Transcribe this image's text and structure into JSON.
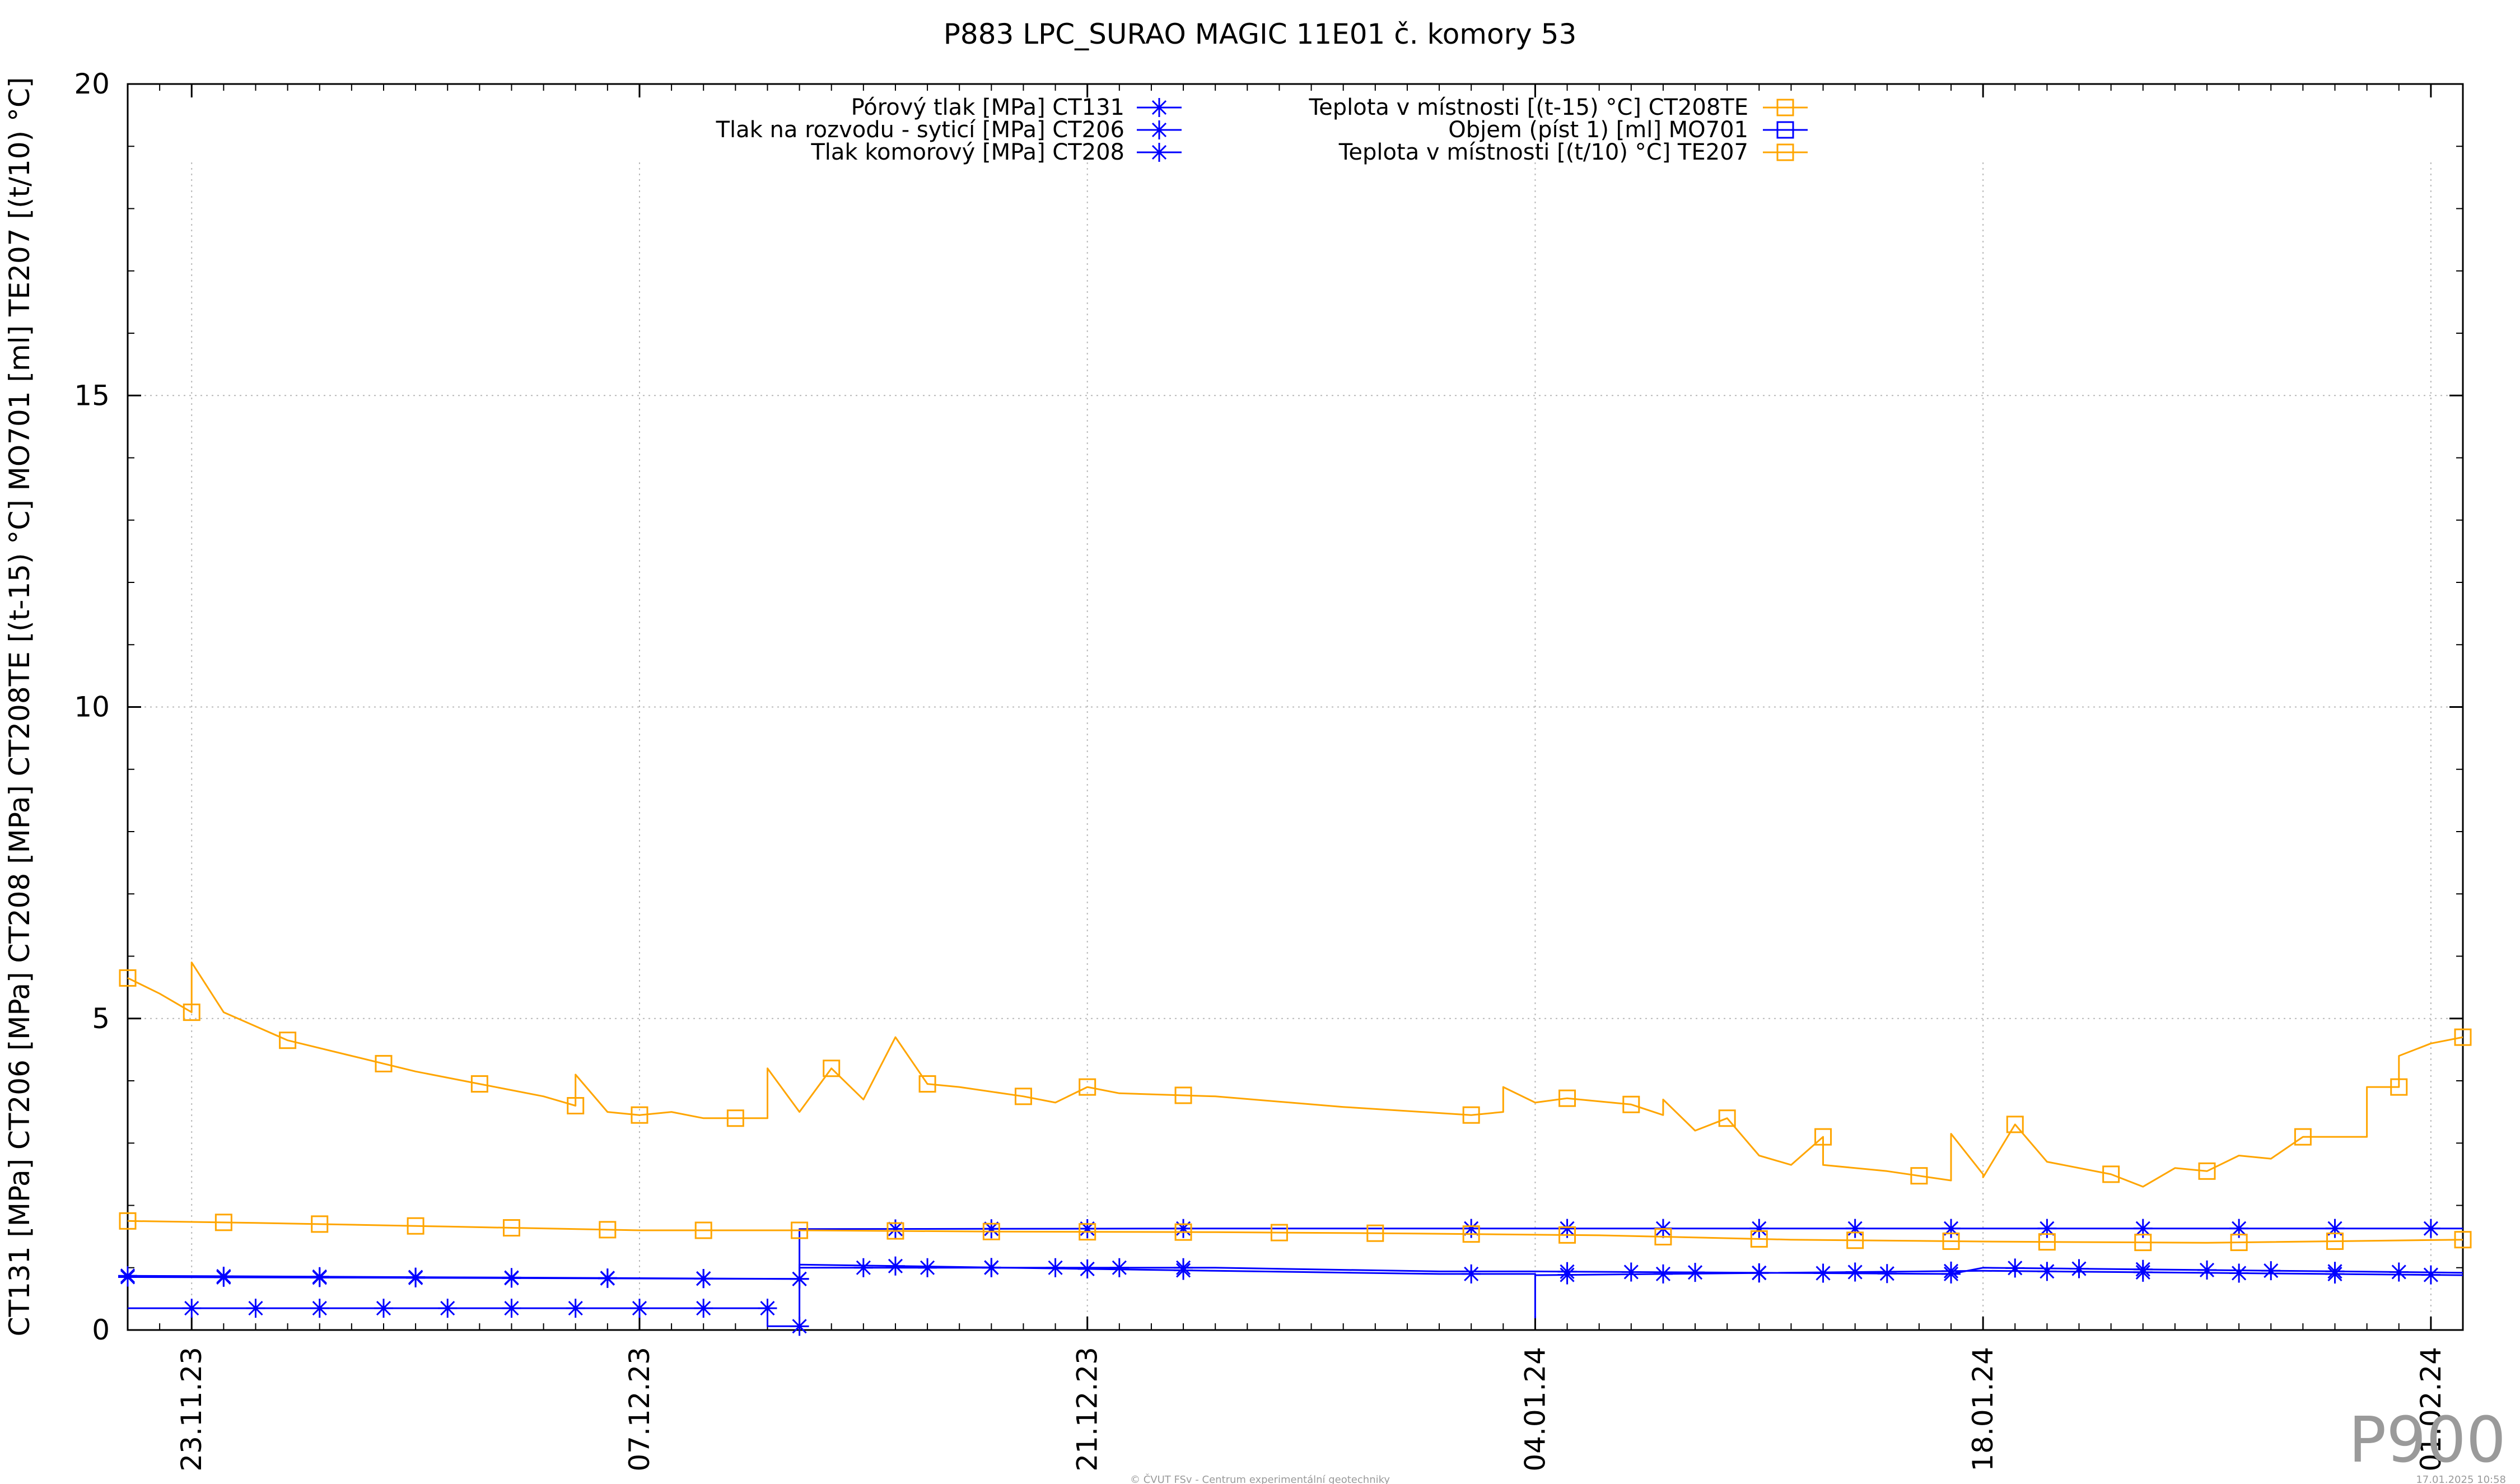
{
  "chart_data": {
    "type": "line",
    "title": "P883 LPC_SURAO MAGIC 11E01 č. komory 53",
    "ylabel": "CT131 [MPa] CT206 [MPa] CT208 [MPa] CT208TE [(t-15) °C] MO701 [ml] TE207 [(t/10) °C]",
    "xlabel": "",
    "ylim": [
      0,
      20
    ],
    "yticks": [
      0,
      5,
      10,
      15,
      20
    ],
    "y_minor_step": 1,
    "xlim": [
      "2023-11-21",
      "2024-02-02"
    ],
    "xticks": [
      "2023-11-23",
      "2023-12-07",
      "2023-12-21",
      "2024-01-04",
      "2024-01-18",
      "2024-02-01"
    ],
    "xtick_labels": [
      "23.11.23",
      "07.12.23",
      "21.12.23",
      "04.01.24",
      "18.01.24",
      "01.02.24"
    ],
    "x_minor_step_days": 1,
    "grid": true,
    "legend_position": "top",
    "series": [
      {
        "name": "Pórový tlak [MPa] CT131",
        "color": "#0000ff",
        "marker": "asterisk",
        "legend_col": 0,
        "points": [
          [
            "2023-11-21",
            0.35
          ],
          [
            "2023-12-11",
            0.35
          ],
          [
            "2023-12-11",
            0.06
          ],
          [
            "2023-12-12",
            0.06
          ],
          [
            "2023-12-12",
            1.0
          ],
          [
            "2023-12-25",
            1.0
          ],
          [
            "2024-01-01",
            0.94
          ],
          [
            "2024-01-04",
            0.94
          ],
          [
            "2024-01-17",
            0.9
          ],
          [
            "2024-01-18",
            1.0
          ],
          [
            "2024-02-02",
            0.92
          ]
        ],
        "markers": [
          "2023-11-23",
          "2023-11-25",
          "2023-11-27",
          "2023-11-29",
          "2023-12-01",
          "2023-12-03",
          "2023-12-05",
          "2023-12-07",
          "2023-12-09",
          "2023-12-11",
          "2023-12-12",
          "2023-12-14",
          "2023-12-16",
          "2023-12-18",
          "2023-12-20",
          "2023-12-22",
          "2023-12-24",
          "2024-01-05",
          "2024-01-07",
          "2024-01-09",
          "2024-01-11",
          "2024-01-13",
          "2024-01-15",
          "2024-01-17",
          "2024-01-19",
          "2024-01-21",
          "2024-01-23",
          "2024-01-25",
          "2024-01-27",
          "2024-01-29",
          "2024-01-31"
        ]
      },
      {
        "name": "Tlak na rozvodu - syticí [MPa] CT206",
        "color": "#0000ff",
        "marker": "asterisk",
        "legend_col": 0,
        "points": [
          [
            "2023-11-21",
            0.85
          ],
          [
            "2023-12-12",
            0.82
          ],
          [
            "2023-12-12",
            1.05
          ],
          [
            "2023-12-25",
            0.95
          ],
          [
            "2024-01-01",
            0.9
          ],
          [
            "2024-01-04",
            0.9
          ],
          [
            "2024-01-04",
            0.2
          ],
          [
            "2024-01-04",
            0.88
          ],
          [
            "2024-01-18",
            0.95
          ],
          [
            "2024-02-02",
            0.88
          ]
        ],
        "markers": [
          "2023-11-21",
          "2023-11-24",
          "2023-11-27",
          "2023-11-30",
          "2023-12-03",
          "2023-12-06",
          "2023-12-09",
          "2023-12-12",
          "2023-12-15",
          "2023-12-18",
          "2023-12-21",
          "2023-12-24",
          "2024-01-02",
          "2024-01-05",
          "2024-01-08",
          "2024-01-11",
          "2024-01-14",
          "2024-01-17",
          "2024-01-20",
          "2024-01-23",
          "2024-01-26",
          "2024-01-29",
          "2024-02-01"
        ]
      },
      {
        "name": "Tlak komorový [MPa] CT208",
        "color": "#0000ff",
        "marker": "asterisk",
        "legend_col": 0,
        "points": [
          [
            "2023-11-21",
            0.87
          ],
          [
            "2023-12-12",
            0.82
          ],
          [
            "2023-12-12",
            1.62
          ],
          [
            "2023-12-25",
            1.63
          ],
          [
            "2024-01-01",
            1.63
          ],
          [
            "2024-02-02",
            1.63
          ]
        ],
        "markers": [
          "2023-11-21",
          "2023-11-24",
          "2023-11-27",
          "2023-11-30",
          "2023-12-03",
          "2023-12-06",
          "2023-12-09",
          "2023-12-12",
          "2023-12-15",
          "2023-12-18",
          "2023-12-21",
          "2023-12-24",
          "2024-01-02",
          "2024-01-05",
          "2024-01-08",
          "2024-01-11",
          "2024-01-14",
          "2024-01-17",
          "2024-01-20",
          "2024-01-23",
          "2024-01-26",
          "2024-01-29",
          "2024-02-01"
        ]
      },
      {
        "name": "Teplota v místnosti [(t-15) °C] CT208TE",
        "color": "#ffa500",
        "marker": "square",
        "legend_col": 1,
        "points": [
          [
            "2023-11-21",
            5.65
          ],
          [
            "2023-11-22",
            5.4
          ],
          [
            "2023-11-23",
            5.1
          ],
          [
            "2023-11-23",
            5.9
          ],
          [
            "2023-11-24",
            5.1
          ],
          [
            "2023-11-26",
            4.65
          ],
          [
            "2023-11-28",
            4.4
          ],
          [
            "2023-11-30",
            4.15
          ],
          [
            "2023-12-02",
            3.95
          ],
          [
            "2023-12-04",
            3.75
          ],
          [
            "2023-12-05",
            3.6
          ],
          [
            "2023-12-05",
            4.1
          ],
          [
            "2023-12-06",
            3.5
          ],
          [
            "2023-12-07",
            3.45
          ],
          [
            "2023-12-08",
            3.5
          ],
          [
            "2023-12-09",
            3.4
          ],
          [
            "2023-12-11",
            3.4
          ],
          [
            "2023-12-11",
            4.2
          ],
          [
            "2023-12-12",
            3.5
          ],
          [
            "2023-12-13",
            4.2
          ],
          [
            "2023-12-14",
            3.7
          ],
          [
            "2023-12-15",
            4.7
          ],
          [
            "2023-12-16",
            3.95
          ],
          [
            "2023-12-17",
            3.9
          ],
          [
            "2023-12-19",
            3.75
          ],
          [
            "2023-12-20",
            3.65
          ],
          [
            "2023-12-21",
            3.9
          ],
          [
            "2023-12-22",
            3.8
          ],
          [
            "2023-12-25",
            3.75
          ],
          [
            "2023-12-29",
            3.58
          ],
          [
            "2024-01-02",
            3.45
          ],
          [
            "2024-01-03",
            3.5
          ],
          [
            "2024-01-03",
            3.9
          ],
          [
            "2024-01-04",
            3.65
          ],
          [
            "2024-01-05",
            3.72
          ],
          [
            "2024-01-07",
            3.62
          ],
          [
            "2024-01-08",
            3.45
          ],
          [
            "2024-01-08",
            3.7
          ],
          [
            "2024-01-09",
            3.2
          ],
          [
            "2024-01-10",
            3.4
          ],
          [
            "2024-01-11",
            2.8
          ],
          [
            "2024-01-12",
            2.65
          ],
          [
            "2024-01-13",
            3.1
          ],
          [
            "2024-01-13",
            2.65
          ],
          [
            "2024-01-15",
            2.55
          ],
          [
            "2024-01-17",
            2.4
          ],
          [
            "2024-01-17",
            3.15
          ],
          [
            "2024-01-18",
            2.5
          ],
          [
            "2024-01-18",
            2.45
          ],
          [
            "2024-01-19",
            3.3
          ],
          [
            "2024-01-20",
            2.7
          ],
          [
            "2024-01-22",
            2.5
          ],
          [
            "2024-01-23",
            2.3
          ],
          [
            "2024-01-24",
            2.6
          ],
          [
            "2024-01-25",
            2.55
          ],
          [
            "2024-01-26",
            2.8
          ],
          [
            "2024-01-27",
            2.75
          ],
          [
            "2024-01-28",
            3.1
          ],
          [
            "2024-01-30",
            3.1
          ],
          [
            "2024-01-30",
            3.9
          ],
          [
            "2024-01-31",
            3.9
          ],
          [
            "2024-01-31",
            4.4
          ],
          [
            "2024-02-01",
            4.6
          ],
          [
            "2024-02-02",
            4.7
          ]
        ],
        "markers": [
          "2023-11-21",
          "2023-11-23",
          "2023-11-26",
          "2023-11-29",
          "2023-12-02",
          "2023-12-05",
          "2023-12-07",
          "2023-12-10",
          "2023-12-13",
          "2023-12-16",
          "2023-12-19",
          "2023-12-21",
          "2023-12-24",
          "2024-01-02",
          "2024-01-05",
          "2024-01-07",
          "2024-01-10",
          "2024-01-13",
          "2024-01-16",
          "2024-01-19",
          "2024-01-22",
          "2024-01-25",
          "2024-01-28",
          "2024-01-31",
          "2024-02-02"
        ],
        "gaps": [
          [
            "2023-12-25",
            "2024-01-01"
          ]
        ]
      },
      {
        "name": "Objem (píst 1) [ml] MO701",
        "color": "#0000ff",
        "marker": "square",
        "legend_col": 1,
        "points": [],
        "markers": []
      },
      {
        "name": "Teplota v místnosti [(t/10) °C] TE207",
        "color": "#ffa500",
        "marker": "square",
        "legend_col": 1,
        "points": [
          [
            "2023-11-21",
            1.75
          ],
          [
            "2023-11-25",
            1.72
          ],
          [
            "2023-12-01",
            1.66
          ],
          [
            "2023-12-07",
            1.6
          ],
          [
            "2023-12-12",
            1.6
          ],
          [
            "2023-12-18",
            1.58
          ],
          [
            "2023-12-25",
            1.57
          ],
          [
            "2023-12-31",
            1.55
          ],
          [
            "2024-01-06",
            1.52
          ],
          [
            "2024-01-12",
            1.45
          ],
          [
            "2024-01-18",
            1.42
          ],
          [
            "2024-01-25",
            1.4
          ],
          [
            "2024-02-02",
            1.45
          ]
        ],
        "markers": [
          "2023-11-21",
          "2023-11-24",
          "2023-11-27",
          "2023-11-30",
          "2023-12-03",
          "2023-12-06",
          "2023-12-09",
          "2023-12-12",
          "2023-12-15",
          "2023-12-18",
          "2023-12-21",
          "2023-12-24",
          "2023-12-27",
          "2023-12-30",
          "2024-01-02",
          "2024-01-05",
          "2024-01-08",
          "2024-01-11",
          "2024-01-14",
          "2024-01-17",
          "2024-01-20",
          "2024-01-23",
          "2024-01-26",
          "2024-01-29",
          "2024-02-02"
        ]
      }
    ]
  },
  "watermark": "P900",
  "footer_center": "© ČVUT FSv - Centrum experimentální geotechniky",
  "footer_right": "17.01.2025 10:58"
}
